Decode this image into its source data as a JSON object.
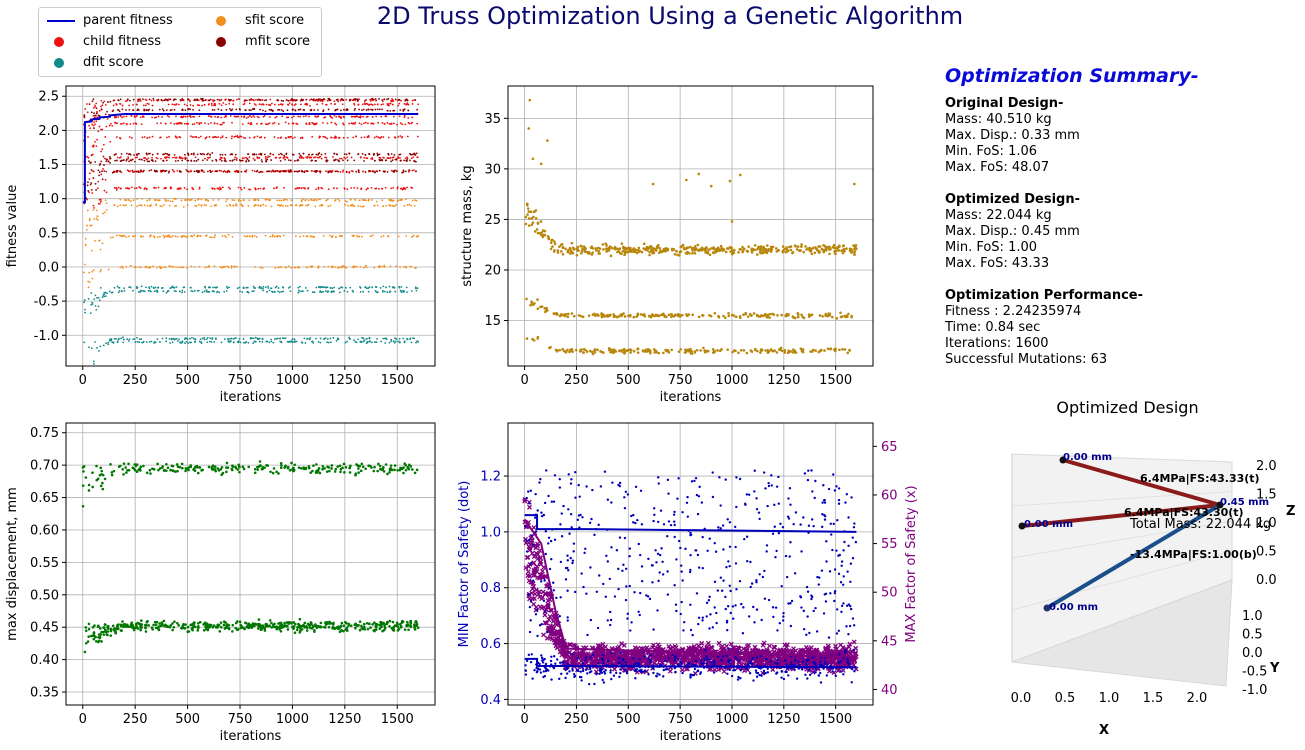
{
  "title": "2D Truss Optimization Using a Genetic Algorithm",
  "legend": {
    "items": [
      {
        "label": "parent fitness",
        "kind": "line",
        "color": "#0000cc"
      },
      {
        "label": "child fitness",
        "kind": "dot",
        "color": "#ee1111"
      },
      {
        "label": "dfit score",
        "kind": "dot",
        "color": "#118a8a"
      },
      {
        "label": "sfit score",
        "kind": "dot",
        "color": "#f28e1c"
      },
      {
        "label": "mfit score",
        "kind": "dot",
        "color": "#8b0000"
      }
    ]
  },
  "summary": {
    "heading": "Optimization Summary-",
    "original": {
      "heading": "Original Design-",
      "lines": [
        "Mass: 40.510 kg",
        "Max. Disp.: 0.33 mm",
        "Min. FoS: 1.06",
        "Max. FoS: 48.07"
      ]
    },
    "optimized": {
      "heading": "Optimized Design-",
      "lines": [
        "Mass: 22.044 kg",
        "Max. Disp.: 0.45 mm",
        "Min. FoS: 1.00",
        "Max. FoS: 43.33"
      ]
    },
    "performance": {
      "heading": "Optimization Performance-",
      "lines": [
        "Fitness :  2.24235974",
        "Time:  0.84 sec",
        "Iterations: 1600",
        "Successful Mutations: 63"
      ]
    }
  },
  "chart_data": [
    {
      "type": "scatter",
      "xlabel": "iterations",
      "ylabel": "fitness value",
      "xlim": [
        -80,
        1680
      ],
      "ylim": [
        -1.45,
        2.65
      ],
      "xticks": [
        0,
        250,
        500,
        750,
        1000,
        1250,
        1500
      ],
      "yticks": [
        -1.0,
        -0.5,
        0.0,
        0.5,
        1.0,
        1.5,
        2.0,
        2.5
      ],
      "grid": true,
      "series": [
        {
          "name": "parent fitness",
          "kind": "line",
          "color": "#0000cc",
          "x": [
            0,
            10,
            10,
            40,
            40,
            80,
            80,
            130,
            130,
            200,
            1600
          ],
          "y": [
            0.95,
            0.95,
            2.12,
            2.13,
            2.16,
            2.17,
            2.19,
            2.2,
            2.22,
            2.24,
            2.24
          ]
        },
        {
          "name": "child fitness",
          "kind": "scatter",
          "color": "#ee1111",
          "bands": [
            2.44,
            2.38,
            2.2,
            2.1,
            1.9,
            1.6,
            1.4,
            1.15
          ]
        },
        {
          "name": "mfit score",
          "kind": "scatter",
          "color": "#8b0000",
          "bands": [
            2.45,
            2.3,
            1.65,
            1.56,
            1.4
          ]
        },
        {
          "name": "sfit score",
          "kind": "scatter",
          "color": "#f28e1c",
          "bands": [
            0.98,
            0.9,
            0.45,
            0.0
          ]
        },
        {
          "name": "dfit score",
          "kind": "scatter",
          "color": "#118a8a",
          "bands": [
            -0.3,
            -0.36,
            -1.05,
            -1.1
          ]
        }
      ]
    },
    {
      "type": "scatter",
      "xlabel": "iterations",
      "ylabel": "structure mass, kg",
      "xlim": [
        -80,
        1680
      ],
      "ylim": [
        10.5,
        38.2
      ],
      "xticks": [
        0,
        250,
        500,
        750,
        1000,
        1250,
        1500
      ],
      "yticks": [
        15,
        20,
        25,
        30,
        35
      ],
      "grid": true,
      "series": [
        {
          "name": "",
          "kind": "scatter",
          "color": "#b8860b",
          "bands": [
            22.0,
            15.5,
            12.0
          ],
          "outliers": [
            [
              25,
              36.8
            ],
            [
              20,
              34
            ],
            [
              40,
              31
            ],
            [
              80,
              30.5
            ],
            [
              110,
              32.8
            ],
            [
              620,
              28.5
            ],
            [
              780,
              28.9
            ],
            [
              840,
              29.5
            ],
            [
              900,
              28.3
            ],
            [
              990,
              28.8
            ],
            [
              1040,
              29.4
            ],
            [
              1000,
              24.8
            ],
            [
              1590,
              28.5
            ]
          ]
        }
      ]
    },
    {
      "type": "scatter",
      "xlabel": "iterations",
      "ylabel": "max displacement, mm",
      "xlim": [
        -80,
        1680
      ],
      "ylim": [
        0.33,
        0.765
      ],
      "xticks": [
        0,
        250,
        500,
        750,
        1000,
        1250,
        1500
      ],
      "yticks": [
        0.35,
        0.4,
        0.45,
        0.5,
        0.55,
        0.6,
        0.65,
        0.7,
        0.75
      ],
      "grid": true,
      "series": [
        {
          "name": "",
          "kind": "scatter",
          "color": "#007700",
          "bands": [
            0.695,
            0.452
          ]
        }
      ]
    },
    {
      "type": "scatter",
      "xlabel": "iterations",
      "ylabel": "MIN Factor of Safety (dot)",
      "y2label": "MAX Factor of Safety (x)",
      "xlim": [
        -80,
        1680
      ],
      "ylim": [
        0.38,
        1.39
      ],
      "y2lim": [
        38.4,
        67.4
      ],
      "xticks": [
        0,
        250,
        500,
        750,
        1000,
        1250,
        1500
      ],
      "yticks": [
        0.4,
        0.6,
        0.8,
        1.0,
        1.2
      ],
      "y2ticks": [
        40,
        45,
        50,
        55,
        60,
        65
      ],
      "grid": true,
      "series": [
        {
          "name": "MIN Factor of Safety",
          "kind": "scatter+line",
          "color": "#0000bb",
          "bands": [
            1.0,
            0.52
          ],
          "line": [
            1.06,
            1.01,
            1.0
          ]
        },
        {
          "name": "MAX Factor of Safety",
          "kind": "x-scatter+line",
          "color": "#800080",
          "bands": [
            43.3
          ],
          "line": [
            57.5,
            48.0,
            43.33
          ]
        }
      ]
    },
    {
      "type": "3d-truss",
      "title": "Optimized Design",
      "xlabel": "X",
      "ylabel": "Y",
      "zlabel": "Z",
      "xticks": [
        "0.0",
        "0.5",
        "1.0",
        "1.5",
        "2.0"
      ],
      "yticks": [
        "1.0",
        "0.5",
        "0.0",
        "-0.5",
        "-1.0"
      ],
      "zticks": [
        "2.0",
        "1.5",
        "1.0",
        "0.5",
        "0.0"
      ],
      "node_labels": [
        "0.00 mm",
        "0.00 mm",
        "0.45 mm",
        "0.00 mm"
      ],
      "member_labels": [
        "6.4MPa|FS:43.33(t)",
        "6.4MPa|FS:43.30(t)",
        "-13.4MPa|FS:1.00(b)"
      ],
      "total_mass_label": "Total Mass: 22.044 kg",
      "colors": {
        "tension": "#8b1a1a",
        "compression": "#1a4f8b"
      }
    }
  ]
}
